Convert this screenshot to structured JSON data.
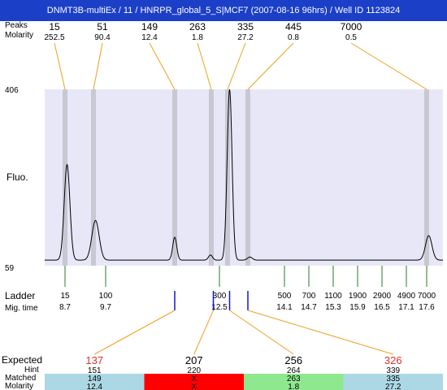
{
  "title": "DNMT3B-multiEx / 11 / HNRPR_global_5_S|MCF7 (2007-08-16 96hrs) / Well ID 1123824",
  "row_labels": {
    "peaks": "Peaks",
    "molarity": "Molarity",
    "fluo": "Fluo.",
    "ladder": "Ladder",
    "migtime": "Mig. time",
    "expected": "Expected",
    "hint": "Hint",
    "matched": "Matched",
    "molarity2": "Molarity"
  },
  "y_ticks": {
    "top": "406",
    "bottom": "59"
  },
  "colors": {
    "plot_bg": "#e7e7f7",
    "marker_band": "#c8c8d2",
    "connector": "#f0a020",
    "ladder_tick": "#2a7a2a",
    "sample_tick": "#1515d0",
    "expected_red": "#e03030",
    "cell_default": "#acd8e6",
    "cell_red": "#ff0000",
    "cell_green": "#8ee88e",
    "titlebar": "#1c3fc8"
  },
  "chart_data": {
    "type": "line",
    "title": "DNMT3B-multiEx / 11 / HNRPR_global_5_S|MCF7 (2007-08-16 96hrs) / Well ID 1123824",
    "ylabel": "Fluo.",
    "ylim": [
      59,
      406
    ],
    "peaks": [
      {
        "size": "15",
        "molarity": "252.5",
        "mig": 8.7
      },
      {
        "size": "51",
        "molarity": "90.4",
        "mig": 9.4
      },
      {
        "size": "149",
        "molarity": "12.4",
        "mig": 11.4
      },
      {
        "size": "263",
        "molarity": "1.8",
        "mig": 12.3
      },
      {
        "size": "335",
        "molarity": "27.2",
        "mig": 12.7
      },
      {
        "size": "445",
        "molarity": "0.8",
        "mig": 13.2
      },
      {
        "size": "7000",
        "molarity": "0.5",
        "mig": 17.6
      }
    ],
    "ladder": [
      {
        "size": "15",
        "mig": "8.7"
      },
      {
        "size": "100",
        "mig": "9.7"
      },
      {
        "size": "300",
        "mig": "12.5"
      },
      {
        "size": "500",
        "mig": "14.1"
      },
      {
        "size": "700",
        "mig": "14.7"
      },
      {
        "size": "1100",
        "mig": "15.3"
      },
      {
        "size": "1900",
        "mig": "15.9"
      },
      {
        "size": "2900",
        "mig": "16.5"
      },
      {
        "size": "4900",
        "mig": "17.1"
      },
      {
        "size": "7000",
        "mig": "17.6"
      }
    ],
    "trace": {
      "baseline": 70,
      "mig_range": [
        8.2,
        18.0
      ],
      "peaks": [
        {
          "mig": 8.75,
          "height": 258,
          "width": 0.07
        },
        {
          "mig": 9.45,
          "height": 148,
          "width": 0.09
        },
        {
          "mig": 11.4,
          "height": 115,
          "width": 0.05
        },
        {
          "mig": 12.28,
          "height": 80,
          "width": 0.05
        },
        {
          "mig": 12.75,
          "height": 406,
          "width": 0.06
        },
        {
          "mig": 13.25,
          "height": 76,
          "width": 0.06
        },
        {
          "mig": 17.65,
          "height": 118,
          "width": 0.08
        }
      ]
    },
    "sample_ticks": [
      11.4,
      12.35,
      12.75,
      13.2
    ],
    "expected": [
      {
        "expected": "137",
        "hint": "151",
        "matched": "149",
        "molarity": "12.4",
        "status": "default",
        "red_label": true,
        "tick": 0
      },
      {
        "expected": "207",
        "hint": "220",
        "matched": "X",
        "molarity": "X",
        "status": "red",
        "red_label": false,
        "tick": 1
      },
      {
        "expected": "256",
        "hint": "264",
        "matched": "263",
        "molarity": "1.8",
        "status": "green",
        "red_label": false,
        "tick": 2
      },
      {
        "expected": "326",
        "hint": "339",
        "matched": "335",
        "molarity": "27.2",
        "status": "default",
        "red_label": true,
        "tick": 3
      }
    ]
  }
}
